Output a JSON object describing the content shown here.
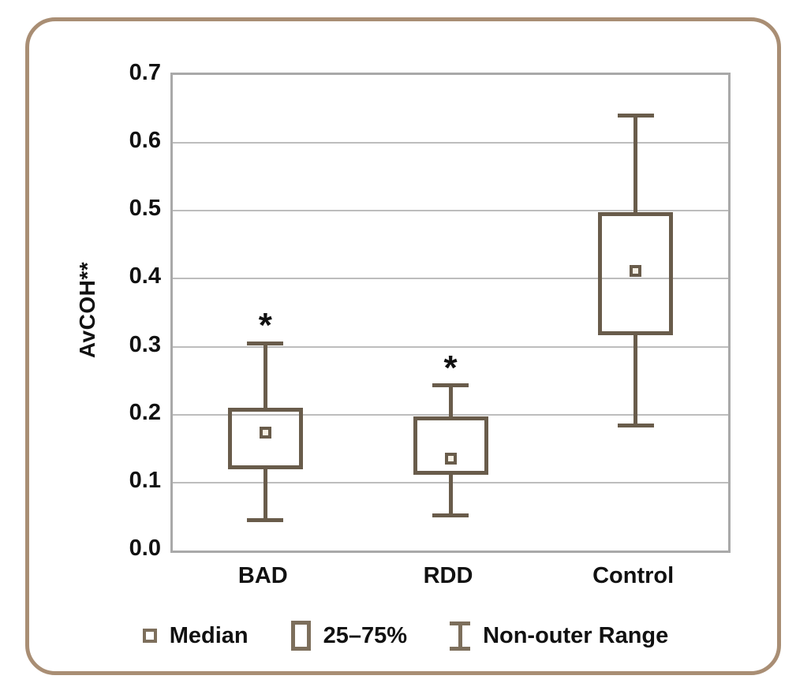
{
  "figure": {
    "legend": [
      {
        "icon": "median-marker-icon",
        "label": "Median"
      },
      {
        "icon": "box-icon",
        "label": "25–75%"
      },
      {
        "icon": "whisker-icon",
        "label": "Non-outer Range"
      }
    ]
  },
  "chart_data": {
    "type": "boxplot",
    "title": "",
    "ylabel": "AvCOH**",
    "xlabel": "",
    "ylim": [
      0,
      0.7
    ],
    "yticks": [
      "0.0",
      "0.1",
      "0.2",
      "0.3",
      "0.4",
      "0.5",
      "0.6",
      "0.7"
    ],
    "grid": true,
    "legend_position": "bottom",
    "categories": [
      "BAD",
      "RDD",
      "Control"
    ],
    "series": [
      {
        "name": "BAD",
        "whisker_low": 0.045,
        "q1": 0.12,
        "median": 0.174,
        "q3": 0.21,
        "whisker_high": 0.305,
        "annotation": "*"
      },
      {
        "name": "RDD",
        "whisker_low": 0.052,
        "q1": 0.112,
        "median": 0.135,
        "q3": 0.197,
        "whisker_high": 0.243,
        "annotation": "*"
      },
      {
        "name": "Control",
        "whisker_low": 0.184,
        "q1": 0.317,
        "median": 0.412,
        "q3": 0.498,
        "whisker_high": 0.64,
        "annotation": ""
      }
    ]
  },
  "colors": {
    "accent": "#695c4b",
    "legend_icon": "#7d6f5c",
    "median_fill": "#f6f0e4",
    "outer_border": "#a98e74",
    "frame": "#a9a9a9",
    "gridline": "#bdbdbd",
    "text": "#111111"
  }
}
